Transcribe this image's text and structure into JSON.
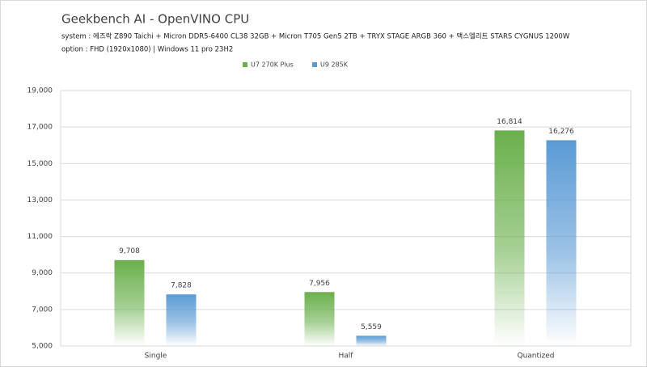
{
  "chart_data": {
    "type": "bar",
    "title": "Geekbench AI - OpenVINO CPU",
    "subtitles": [
      "system : 에즈락 Z890 Taichi + Micron DDR5-6400 CL38 32GB + Micron T705 Gen5 2TB + TRYX STAGE ARGB 360 + 맥스엘리트 STARS CYGNUS 1200W",
      "option : FHD (1920x1080) | Windows 11 pro 23H2"
    ],
    "categories": [
      "Single",
      "Half",
      "Quantized"
    ],
    "series": [
      {
        "name": "U7 270K Plus",
        "color": "#6ab04c",
        "values": [
          9708,
          7956,
          16814
        ],
        "value_labels": [
          "9,708",
          "7,956",
          "16,814"
        ]
      },
      {
        "name": "U9 285K",
        "color": "#5b9bd5",
        "values": [
          7828,
          5559,
          16276
        ],
        "value_labels": [
          "7,828",
          "5,559",
          "16,276"
        ]
      }
    ],
    "ylim": [
      5000,
      19000
    ],
    "yticks": [
      {
        "value": 5000,
        "label": "5,000"
      },
      {
        "value": 7000,
        "label": "7,000"
      },
      {
        "value": 9000,
        "label": "9,000"
      },
      {
        "value": 11000,
        "label": "11,000"
      },
      {
        "value": 13000,
        "label": "13,000"
      },
      {
        "value": 15000,
        "label": "15,000"
      },
      {
        "value": 17000,
        "label": "17,000"
      },
      {
        "value": 19000,
        "label": "19,000"
      }
    ],
    "grid": true
  }
}
